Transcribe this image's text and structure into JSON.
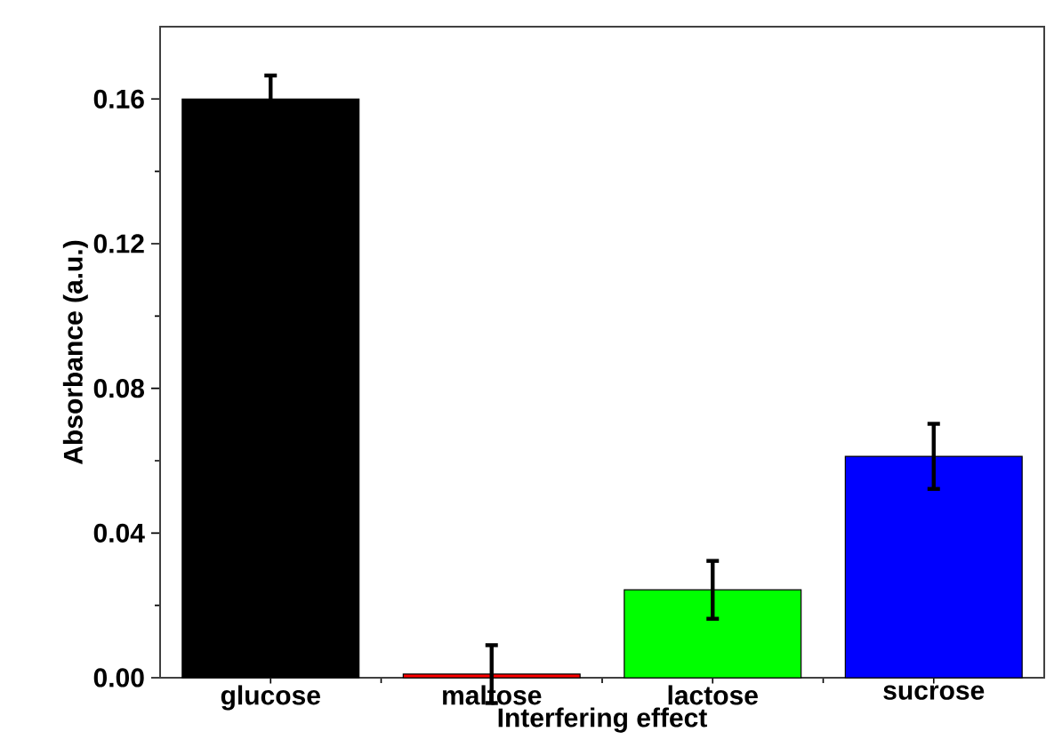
{
  "chart_data": {
    "type": "bar",
    "xlabel": "Interfering effect",
    "ylabel": "Absorbance (a.u.)",
    "categories": [
      "glucose",
      "maltose",
      "lactose",
      "sucrose"
    ],
    "values": [
      0.16,
      0.001,
      0.0243,
      0.0612
    ],
    "errors": [
      0.0065,
      0.008,
      0.008,
      0.009
    ],
    "colors": [
      "#000000",
      "#ff0000",
      "#00ff00",
      "#0000ff"
    ],
    "ylim": [
      0,
      0.18
    ],
    "yticks": [
      {
        "value": 0,
        "label": "0.00"
      },
      {
        "value": 0.04,
        "label": "0.04"
      },
      {
        "value": 0.08,
        "label": "0.08"
      },
      {
        "value": 0.12,
        "label": "0.12"
      },
      {
        "value": 0.16,
        "label": "0.16"
      }
    ],
    "grid": false
  }
}
